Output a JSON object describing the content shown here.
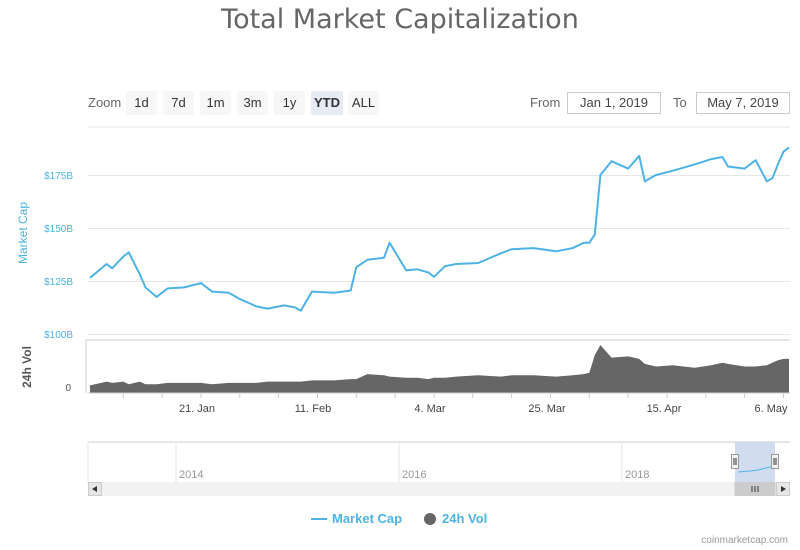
{
  "title": "Total Market Capitalization",
  "zoom": {
    "label": "Zoom",
    "buttons": [
      "1d",
      "7d",
      "1m",
      "3m",
      "1y",
      "YTD",
      "ALL"
    ],
    "active": "YTD"
  },
  "range": {
    "from_label": "From",
    "from_value": "Jan 1, 2019",
    "to_label": "To",
    "to_value": "May 7, 2019"
  },
  "legend": {
    "market_cap": "Market Cap",
    "vol": "24h Vol"
  },
  "credit": "coinmarketcap.com",
  "colors": {
    "market_cap": "#4db3e6",
    "volume": "#666666",
    "navigator_mask": "#c6d4ea"
  },
  "chart_data": {
    "type": "line",
    "ylabel": "Market Cap",
    "ylabel2": "24h Vol",
    "y_ticks": [
      "$100B",
      "$125B",
      "$150B",
      "$175B"
    ],
    "y2_ticks": [
      "0"
    ],
    "x_ticks": [
      "21. Jan",
      "11. Feb",
      "4. Mar",
      "25. Mar",
      "15. Apr",
      "6. May"
    ],
    "navigator_ticks": [
      "2014",
      "2016",
      "2018"
    ],
    "x_dates": [
      "2019-01-01",
      "2019-01-04",
      "2019-01-05",
      "2019-01-07",
      "2019-01-08",
      "2019-01-10",
      "2019-01-11",
      "2019-01-13",
      "2019-01-15",
      "2019-01-18",
      "2019-01-21",
      "2019-01-23",
      "2019-01-26",
      "2019-01-28",
      "2019-01-31",
      "2019-02-02",
      "2019-02-05",
      "2019-02-07",
      "2019-02-08",
      "2019-02-10",
      "2019-02-14",
      "2019-02-17",
      "2019-02-18",
      "2019-02-20",
      "2019-02-23",
      "2019-02-24",
      "2019-02-27",
      "2019-03-01",
      "2019-03-03",
      "2019-03-04",
      "2019-03-06",
      "2019-03-08",
      "2019-03-12",
      "2019-03-16",
      "2019-03-18",
      "2019-03-22",
      "2019-03-26",
      "2019-03-29",
      "2019-03-31",
      "2019-04-01",
      "2019-04-02",
      "2019-04-03",
      "2019-04-05",
      "2019-04-08",
      "2019-04-10",
      "2019-04-11",
      "2019-04-13",
      "2019-04-16",
      "2019-04-20",
      "2019-04-23",
      "2019-04-25",
      "2019-04-26",
      "2019-04-29",
      "2019-05-01",
      "2019-05-03",
      "2019-05-04",
      "2019-05-05",
      "2019-05-06",
      "2019-05-07"
    ],
    "market_cap_billions": [
      126.5,
      133,
      131,
      136.5,
      138.5,
      128,
      122,
      117.5,
      121.5,
      122,
      124,
      120,
      119.5,
      116.5,
      113,
      112,
      113.5,
      112.5,
      111,
      120,
      119.5,
      120.5,
      131.5,
      135,
      136,
      143,
      130,
      130.5,
      129,
      127,
      132,
      133,
      133.5,
      138,
      140,
      140.5,
      139,
      140.5,
      143,
      143,
      147,
      175,
      181.5,
      178,
      184,
      172,
      175,
      177,
      180,
      182.5,
      183.5,
      179,
      178,
      182,
      172,
      173.5,
      180,
      186,
      188
    ],
    "volume_billions": [
      6,
      9,
      8,
      9,
      7,
      9,
      7,
      7,
      8,
      8,
      8,
      7,
      8,
      8,
      8,
      9,
      9,
      9,
      9,
      10,
      10,
      11,
      11,
      15,
      14,
      13,
      12,
      12,
      11,
      12,
      12,
      13,
      14,
      13,
      14,
      14,
      13,
      14,
      15,
      16,
      30,
      38,
      28,
      29,
      27,
      23,
      21,
      22,
      20,
      22,
      24,
      23,
      21,
      21,
      22,
      24,
      26,
      27,
      27
    ],
    "ylim": [
      100,
      188
    ],
    "xlim": [
      "2019-01-01",
      "2019-05-07"
    ],
    "grid": true,
    "legend_position": "bottom-center"
  }
}
